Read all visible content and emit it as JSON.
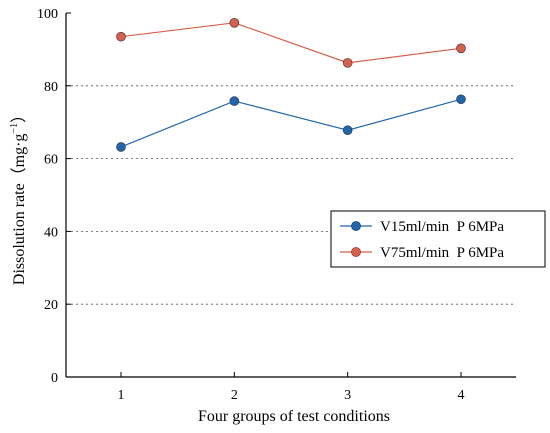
{
  "chart_data": {
    "type": "line",
    "categories": [
      "1",
      "2",
      "3",
      "4"
    ],
    "series": [
      {
        "name": "V15ml/min  P 6MPa",
        "values": [
          63.2,
          75.8,
          67.8,
          76.3
        ],
        "color": "#2166ac"
      },
      {
        "name": "V75ml/min  P 6MPa",
        "values": [
          93.5,
          97.3,
          86.3,
          90.3
        ],
        "color": "#d6604d"
      }
    ],
    "xlabel": "Four groups of test conditions",
    "ylabel_main": "Dissolution rate",
    "ylabel_unit_pre": "（mg·g",
    "ylabel_unit_sup": "−1",
    "ylabel_unit_post": "）",
    "ylim": [
      0,
      100
    ],
    "yticks": [
      "0",
      "20",
      "40",
      "60",
      "80",
      "100"
    ],
    "grid": "horizontal dotted",
    "legend_position": "right-middle"
  }
}
